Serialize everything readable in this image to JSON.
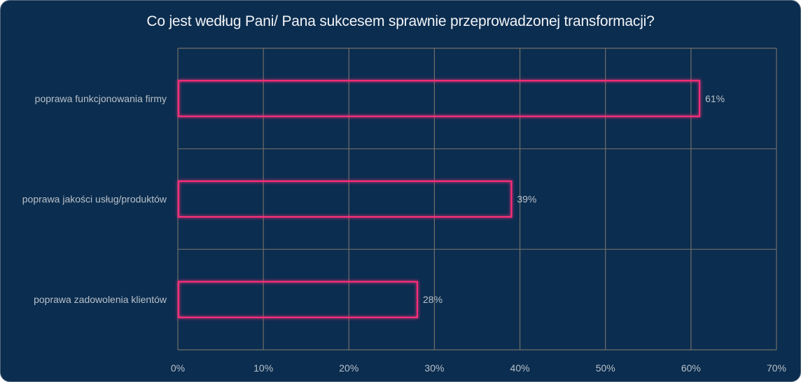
{
  "title": "Co jest według Pani/ Pana sukcesem sprawnie przeprowadzonej transformacji?",
  "colors": {
    "background": "#0b2d4f",
    "bar_outline": "#ff2d7a",
    "grid": "#6f6f68",
    "text": "#b9c1ca",
    "title": "#f2f4f7"
  },
  "chart_data": {
    "type": "bar",
    "orientation": "horizontal",
    "title": "Co jest według Pani/ Pana sukcesem sprawnie przeprowadzonej transformacji?",
    "categories": [
      "poprawa funkcjonowania firmy",
      "poprawa jakości usług/produktów",
      "poprawa zadowolenia klientów"
    ],
    "values": [
      61,
      39,
      28
    ],
    "value_labels": [
      "61%",
      "39%",
      "28%"
    ],
    "xlim": [
      0,
      70
    ],
    "x_ticks": [
      0,
      10,
      20,
      30,
      40,
      50,
      60,
      70
    ],
    "x_tick_labels": [
      "0%",
      "10%",
      "20%",
      "30%",
      "40%",
      "50%",
      "60%",
      "70%"
    ],
    "xlabel": "",
    "ylabel": "",
    "grid": true,
    "legend": "none"
  }
}
